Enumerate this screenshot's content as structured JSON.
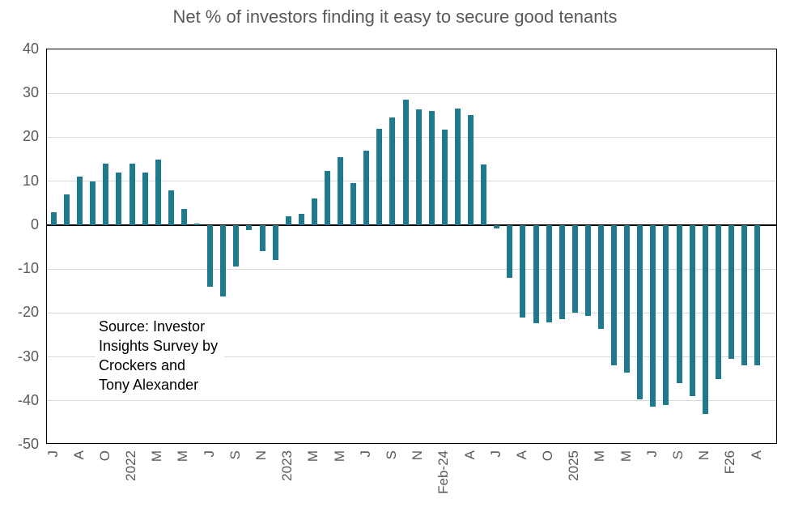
{
  "chart_data": {
    "type": "bar",
    "title": "Net % of investors finding it easy to secure good tenants",
    "source_note": [
      "Source: Investor",
      "Insights Survey by",
      "Crockers and",
      "Tony Alexander"
    ],
    "ylim": [
      -50,
      40
    ],
    "yticks": [
      40,
      30,
      20,
      10,
      0,
      -10,
      -20,
      -30,
      -40,
      -50
    ],
    "x_tick_every": 2,
    "x_tick_labels": [
      "J",
      "A",
      "O",
      "2022",
      "M",
      "M",
      "J",
      "S",
      "N",
      "2023",
      "M",
      "M",
      "J",
      "S",
      "N",
      "Feb-24",
      "A",
      "J",
      "A",
      "O",
      "2025",
      "M",
      "M",
      "J",
      "S",
      "N",
      "F26",
      "A"
    ],
    "values": [
      3,
      7,
      11,
      10,
      14,
      12,
      14,
      12,
      15,
      8,
      3.7,
      0.4,
      -14,
      -16.3,
      -9.4,
      -1.2,
      -6,
      -8,
      2,
      2.5,
      6,
      12.3,
      15.5,
      9.5,
      17,
      22,
      24.5,
      28.5,
      26.4,
      26,
      21.8,
      26.5,
      25,
      13.8,
      -0.7,
      -12,
      -21,
      -22.3,
      -22.1,
      -21.4,
      -20,
      -20.6,
      -23.7,
      -32,
      -33.5,
      -39.7,
      -41.3,
      -41,
      -36,
      -39,
      -43,
      -35,
      -30.5,
      -32,
      -32
    ],
    "grid": true,
    "legend": "none",
    "colors": {
      "bar": "#1f7a8c",
      "grid": "#d9d9d9",
      "zero_line": "#000000",
      "axis_text": "#595959",
      "title_text": "#595959",
      "background": "#ffffff"
    }
  }
}
